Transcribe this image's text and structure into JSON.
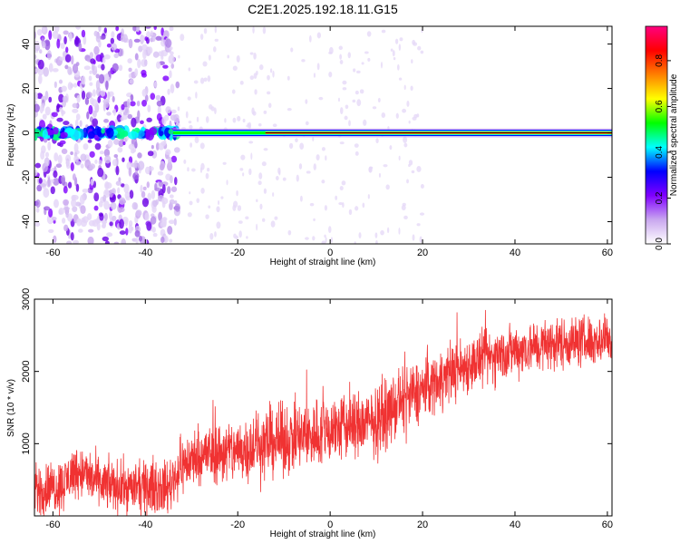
{
  "figure": {
    "title": "C2E1.2025.192.18.11.G15"
  },
  "chart_data": [
    {
      "type": "heatmap",
      "title": "C2E1.2025.192.18.11.G15",
      "xlabel": "Height of straight line (km)",
      "ylabel": "Frequency (Hz)",
      "xlim": [
        -64,
        61
      ],
      "ylim": [
        -50,
        48
      ],
      "xticks": [
        -60,
        -40,
        -20,
        0,
        20,
        40,
        60
      ],
      "yticks": [
        -40,
        -20,
        0,
        20,
        40
      ],
      "colorbar": {
        "label": "Normalized spectral amplitude",
        "range": [
          0,
          0.95
        ],
        "ticks": [
          0.0,
          0.2,
          0.4,
          0.6,
          0.8
        ],
        "colormap": [
          "#ffffff",
          "#c9a7ef",
          "#8000ff",
          "#0000ff",
          "#00ffff",
          "#00ff00",
          "#ffff00",
          "#ff8000",
          "#ff0000",
          "#ff0080"
        ]
      },
      "features": {
        "ridge_frequency_hz": 0,
        "noisy_region_x": [
          -64,
          -33
        ],
        "lock_start_x": -14
      }
    },
    {
      "type": "line",
      "xlabel": "Height of straight line (km)",
      "ylabel": "SNR (10 * v/v)",
      "xlim": [
        -64,
        61
      ],
      "ylim": [
        0,
        3000
      ],
      "xticks": [
        -60,
        -40,
        -20,
        0,
        20,
        40,
        60
      ],
      "yticks": [
        1000,
        2000,
        3000
      ],
      "color": "#f03232",
      "trend": {
        "x": [
          -64,
          -58,
          -55,
          -50,
          -45,
          -40,
          -35,
          -32,
          -28,
          -20,
          -15,
          -10,
          -5,
          0,
          5,
          10,
          15,
          20,
          25,
          30,
          35,
          40,
          45,
          50,
          55,
          60,
          61
        ],
        "y": [
          350,
          420,
          650,
          450,
          400,
          380,
          400,
          700,
          850,
          900,
          1000,
          1050,
          1100,
          1200,
          1250,
          1300,
          1550,
          1750,
          1950,
          2100,
          2200,
          2300,
          2350,
          2400,
          2420,
          2450,
          2450
        ]
      },
      "noise_spread": {
        "x": [
          -64,
          -40,
          -20,
          0,
          20,
          40,
          61
        ],
        "y": [
          260,
          240,
          320,
          350,
          300,
          260,
          240
        ]
      }
    }
  ]
}
